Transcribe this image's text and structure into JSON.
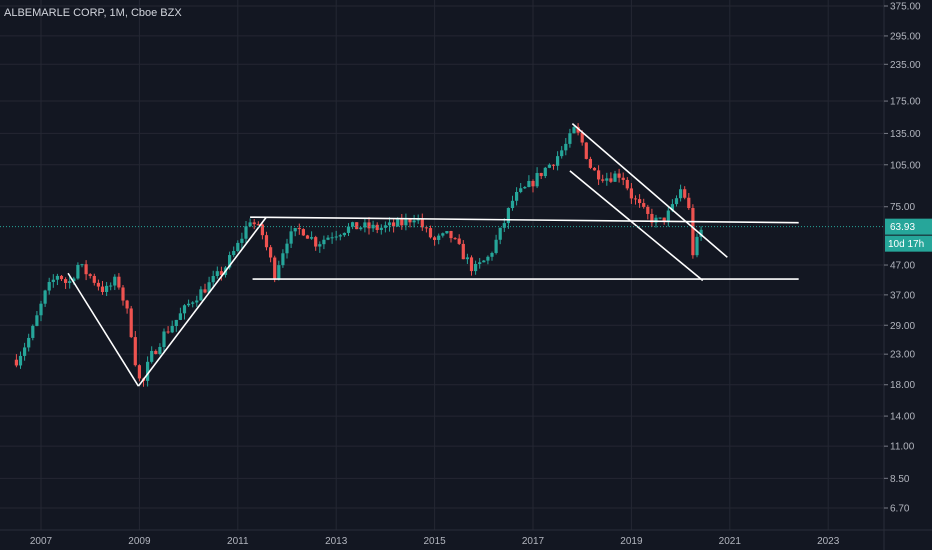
{
  "title": "ALBEMARLE CORP, 1M, Cboe BZX",
  "colors": {
    "background": "#131722",
    "grid": "#242733",
    "up": "#26a69a",
    "down": "#ef5350",
    "lines": "#ffffff",
    "price_label_bg": "#26a69a"
  },
  "price_label": "63.93",
  "countdown_label": "10d 17h",
  "chart_data": {
    "type": "candlestick",
    "title": "ALBEMARLE CORP, 1M, Cboe BZX",
    "y_scale": "log",
    "ylim": [
      5.9,
      420
    ],
    "xlim": [
      2006.4,
      2024.0
    ],
    "y_ticks": [
      "375.00",
      "295.00",
      "235.00",
      "175.00",
      "135.00",
      "105.00",
      "75.00",
      "47.00",
      "37.00",
      "29.00",
      "23.00",
      "18.00",
      "14.00",
      "11.00",
      "8.50",
      "6.70"
    ],
    "x_ticks": [
      "2007",
      "2009",
      "2011",
      "2013",
      "2015",
      "2017",
      "2019",
      "2021",
      "2023"
    ],
    "last_price": 63.93,
    "grid": true,
    "price_anchors": [
      [
        2006.5,
        22
      ],
      [
        2006.8,
        27
      ],
      [
        2007.1,
        38
      ],
      [
        2007.35,
        44
      ],
      [
        2007.55,
        40
      ],
      [
        2007.75,
        47
      ],
      [
        2008.0,
        43
      ],
      [
        2008.3,
        38
      ],
      [
        2008.55,
        42
      ],
      [
        2008.8,
        30
      ],
      [
        2008.95,
        20
      ],
      [
        2009.05,
        17.5
      ],
      [
        2009.2,
        22
      ],
      [
        2009.5,
        27
      ],
      [
        2009.8,
        31
      ],
      [
        2010.1,
        36
      ],
      [
        2010.4,
        40
      ],
      [
        2010.7,
        45
      ],
      [
        2011.0,
        55
      ],
      [
        2011.25,
        68
      ],
      [
        2011.5,
        60
      ],
      [
        2011.75,
        44
      ],
      [
        2012.0,
        58
      ],
      [
        2012.3,
        63
      ],
      [
        2012.6,
        56
      ],
      [
        2012.9,
        60
      ],
      [
        2013.2,
        63
      ],
      [
        2013.5,
        64
      ],
      [
        2013.8,
        63
      ],
      [
        2014.1,
        64
      ],
      [
        2014.4,
        66
      ],
      [
        2014.6,
        70
      ],
      [
        2014.8,
        62
      ],
      [
        2015.0,
        57
      ],
      [
        2015.3,
        60
      ],
      [
        2015.55,
        52
      ],
      [
        2015.8,
        45
      ],
      [
        2016.1,
        50
      ],
      [
        2016.35,
        62
      ],
      [
        2016.6,
        80
      ],
      [
        2016.9,
        88
      ],
      [
        2017.2,
        100
      ],
      [
        2017.45,
        110
      ],
      [
        2017.7,
        125
      ],
      [
        2017.85,
        140
      ],
      [
        2018.0,
        125
      ],
      [
        2018.2,
        100
      ],
      [
        2018.5,
        95
      ],
      [
        2018.8,
        98
      ],
      [
        2019.0,
        82
      ],
      [
        2019.3,
        70
      ],
      [
        2019.55,
        66
      ],
      [
        2019.8,
        72
      ],
      [
        2020.0,
        86
      ],
      [
        2020.15,
        78
      ],
      [
        2020.25,
        52
      ],
      [
        2020.45,
        63.93
      ]
    ],
    "trendlines": [
      {
        "name": "v-down",
        "x1": 2007.55,
        "y1": 44,
        "x2": 2008.98,
        "y2": 17.8
      },
      {
        "name": "v-up",
        "x1": 2008.98,
        "y1": 17.8,
        "x2": 2011.58,
        "y2": 69
      },
      {
        "name": "range-top",
        "x1": 2011.25,
        "y1": 69,
        "x2": 2022.4,
        "y2": 66
      },
      {
        "name": "range-bottom",
        "x1": 2011.3,
        "y1": 42,
        "x2": 2022.4,
        "y2": 42
      },
      {
        "name": "channel-top",
        "x1": 2017.8,
        "y1": 146,
        "x2": 2020.95,
        "y2": 50
      },
      {
        "name": "channel-bottom",
        "x1": 2017.75,
        "y1": 100,
        "x2": 2020.45,
        "y2": 41.5
      }
    ]
  }
}
